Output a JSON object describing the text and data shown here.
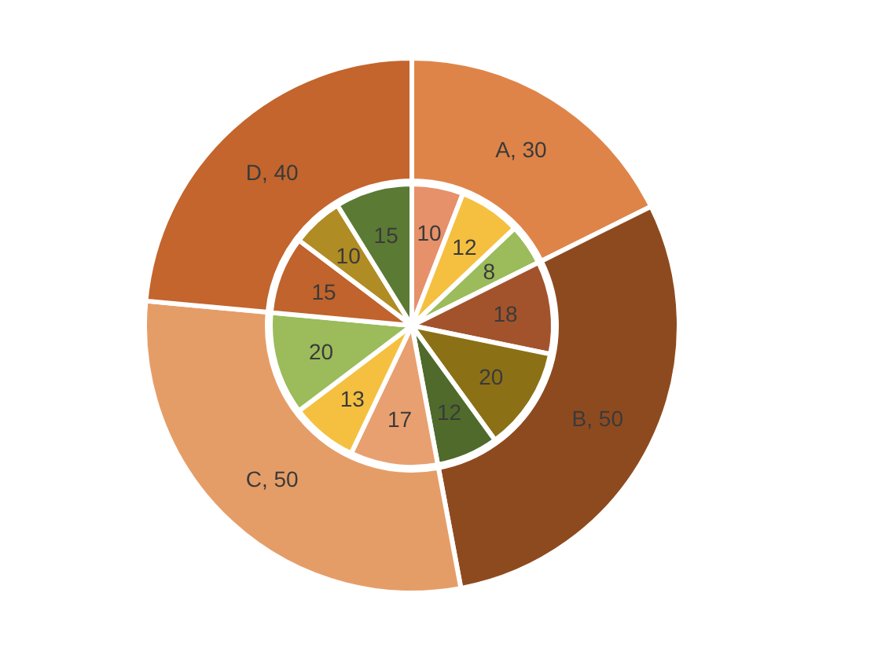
{
  "chart_data": [
    {
      "type": "donut",
      "categories": [
        null,
        null,
        null,
        null
      ],
      "values": [
        30,
        50,
        50,
        40
      ],
      "colors": [
        "#df8448",
        "#8e4a1f",
        "#e59d67",
        "#c3652d"
      ],
      "value_labels": [
        "A, 30",
        "B, 50",
        "C, 50",
        "D, 40"
      ]
    },
    {
      "type": "pie",
      "categories": [
        null,
        null,
        null,
        null,
        null,
        null,
        null,
        null,
        null,
        null,
        null,
        null
      ],
      "values": [
        10,
        12,
        8,
        18,
        20,
        12,
        17,
        13,
        20,
        15,
        10,
        15
      ],
      "colors": [
        "#e6916a",
        "#f5c040",
        "#9cbb5a",
        "#a3532c",
        "#8c7015",
        "#4f6a2b",
        "#e8a070",
        "#f5c040",
        "#9cbb5a",
        "#c0632c",
        "#b08c24",
        "#5b7a34"
      ],
      "data_labels": true
    }
  ]
}
